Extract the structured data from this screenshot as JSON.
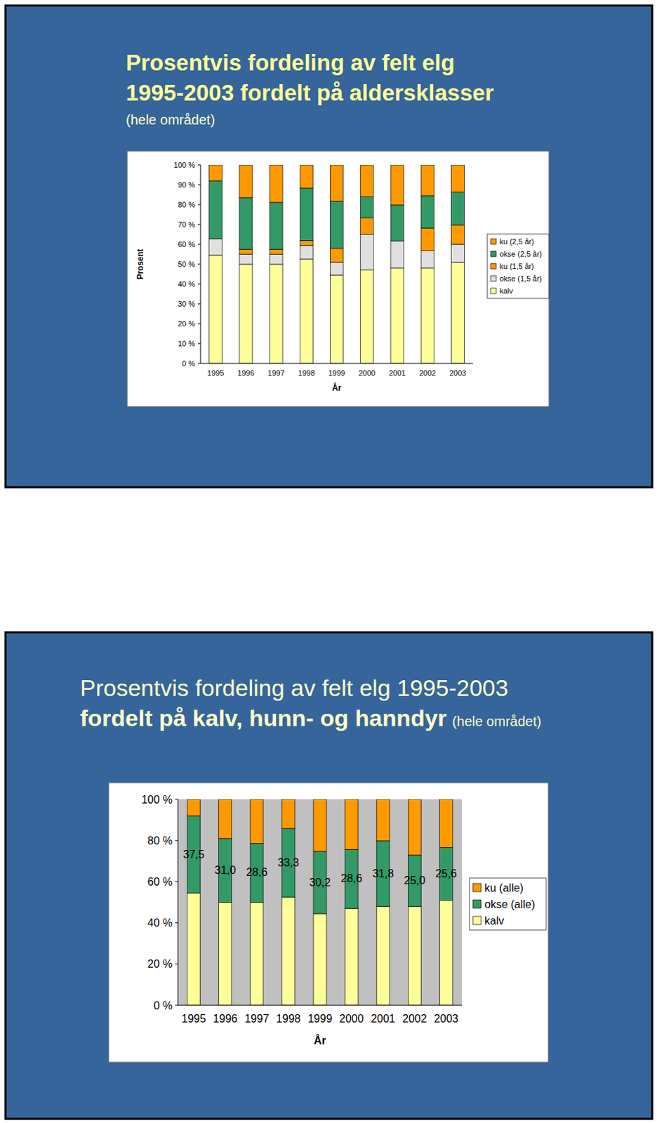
{
  "chart_data": [
    {
      "type": "bar",
      "stacked": true,
      "title": "Prosentvis fordeling av felt elg\n1995-2003 fordelt på aldersklasser",
      "subtitle": "(hele området)",
      "x_label": "År",
      "y_label": "Prosent",
      "categories": [
        "1995",
        "1996",
        "1997",
        "1998",
        "1999",
        "2000",
        "2001",
        "2002",
        "2003"
      ],
      "series": [
        {
          "name": "kalv",
          "color": "#ffff99",
          "values": [
            54.5,
            50.0,
            50.0,
            52.5,
            44.5,
            47.0,
            48.0,
            48.0,
            51.0
          ]
        },
        {
          "name": "okse (1,5 år)",
          "color": "#e0e0e0",
          "values": [
            8.3,
            5.0,
            5.0,
            6.9,
            6.5,
            18.0,
            13.7,
            8.7,
            9.0
          ]
        },
        {
          "name": "ku (1,5 år)",
          "color": "#ff9900",
          "values": [
            0,
            2.5,
            2.5,
            2.5,
            7.0,
            8.3,
            0,
            11.5,
            9.7
          ]
        },
        {
          "name": "okse (2,5 år)",
          "color": "#339966",
          "values": [
            29.2,
            26.0,
            23.6,
            26.4,
            23.7,
            10.6,
            18.1,
            16.3,
            16.6
          ]
        },
        {
          "name": "ku (2,5 år)",
          "color": "#ff9900",
          "values": [
            8.0,
            16.5,
            18.9,
            11.7,
            18.3,
            16.1,
            20.2,
            15.5,
            13.7
          ]
        }
      ],
      "ylim": [
        0,
        100
      ],
      "yticks": [
        {
          "value": 0,
          "label": "0 %"
        },
        {
          "value": 10,
          "label": "10 %"
        },
        {
          "value": 20,
          "label": "20 %"
        },
        {
          "value": 30,
          "label": "30 %"
        },
        {
          "value": 40,
          "label": "40 %"
        },
        {
          "value": 50,
          "label": "50 %"
        },
        {
          "value": 60,
          "label": "60 %"
        },
        {
          "value": 70,
          "label": "70 %"
        },
        {
          "value": 80,
          "label": "80 %"
        },
        {
          "value": 90,
          "label": "90 %"
        },
        {
          "value": 100,
          "label": "100 %"
        }
      ],
      "grid": false,
      "legend": "right"
    },
    {
      "type": "bar",
      "stacked": true,
      "title": "Prosentvis fordeling av felt elg 1995-2003\nfordelt på kalv, hunn- og hanndyr",
      "subtitle": "(hele området)",
      "x_label": "År",
      "categories": [
        "1995",
        "1996",
        "1997",
        "1998",
        "1999",
        "2000",
        "2001",
        "2002",
        "2003"
      ],
      "series": [
        {
          "name": "kalv",
          "color": "#ffff99",
          "values": [
            54.5,
            50.0,
            50.0,
            52.5,
            44.5,
            47.0,
            48.0,
            48.0,
            51.0
          ]
        },
        {
          "name": "okse (alle)",
          "color": "#339966",
          "values": [
            37.5,
            31.0,
            28.6,
            33.3,
            30.2,
            28.6,
            31.8,
            25.0,
            25.6
          ],
          "value_labels": [
            "37,5",
            "31,0",
            "28,6",
            "33,3",
            "30,2",
            "28,6",
            "31,8",
            "25,0",
            "25,6"
          ]
        },
        {
          "name": "ku (alle)",
          "color": "#ff9900",
          "values": [
            8.0,
            19.0,
            21.4,
            14.2,
            25.3,
            24.4,
            20.2,
            27.0,
            23.4
          ]
        }
      ],
      "ylim": [
        0,
        100
      ],
      "yticks": [
        {
          "value": 0,
          "label": "0 %"
        },
        {
          "value": 20,
          "label": "20 %"
        },
        {
          "value": 40,
          "label": "40 %"
        },
        {
          "value": 60,
          "label": "60 %"
        },
        {
          "value": 80,
          "label": "80 %"
        },
        {
          "value": 100,
          "label": "100 %"
        }
      ],
      "grid": false,
      "legend": "right",
      "data_labels": true
    }
  ]
}
